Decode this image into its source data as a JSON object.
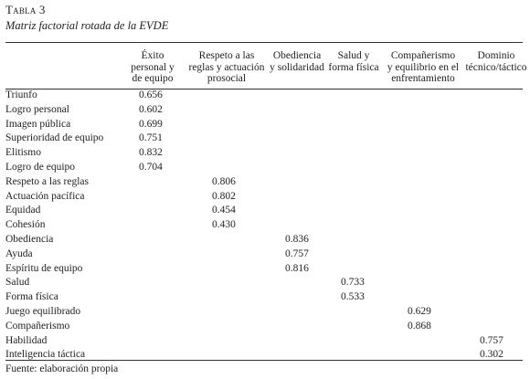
{
  "table_label": "Tabla 3",
  "table_title": "Matriz factorial rotada de la EVDE",
  "columns": [
    "Éxito\npersonal y\nde equipo",
    "Respeto a las\nreglas y actuación\nprosocial",
    "Obediencia\ny solidaridad",
    "Salud y\nforma física",
    "Compañerismo\ny equilibrio en el\nenfrentamiento",
    "Dominio\ntécnico/táctico"
  ],
  "rows": [
    {
      "label": "Triunfo",
      "col": 0,
      "value": "0.656"
    },
    {
      "label": "Logro personal",
      "col": 0,
      "value": "0.602"
    },
    {
      "label": "Imagen pública",
      "col": 0,
      "value": "0.699"
    },
    {
      "label": "Superioridad de equipo",
      "col": 0,
      "value": "0.751"
    },
    {
      "label": "Elitismo",
      "col": 0,
      "value": "0.832"
    },
    {
      "label": "Logro de equipo",
      "col": 0,
      "value": "0.704"
    },
    {
      "label": "Respeto a las reglas",
      "col": 1,
      "value": "0.806"
    },
    {
      "label": "Actuación pacífica",
      "col": 1,
      "value": "0.802"
    },
    {
      "label": "Equidad",
      "col": 1,
      "value": "0.454"
    },
    {
      "label": "Cohesión",
      "col": 1,
      "value": "0.430"
    },
    {
      "label": "Obediencia",
      "col": 2,
      "value": "0.836"
    },
    {
      "label": "Ayuda",
      "col": 2,
      "value": "0.757"
    },
    {
      "label": "Espíritu de equipo",
      "col": 2,
      "value": "0.816"
    },
    {
      "label": "Salud",
      "col": 3,
      "value": "0.733"
    },
    {
      "label": "Forma física",
      "col": 3,
      "value": "0.533"
    },
    {
      "label": "Juego equilibrado",
      "col": 4,
      "value": "0.629"
    },
    {
      "label": "Compañerismo",
      "col": 4,
      "value": "0.868"
    },
    {
      "label": "Habilidad",
      "col": 5,
      "value": "0.757"
    },
    {
      "label": "Inteligencia táctica",
      "col": 5,
      "value": "0.302"
    }
  ],
  "footer": "Fuente: elaboración propia"
}
